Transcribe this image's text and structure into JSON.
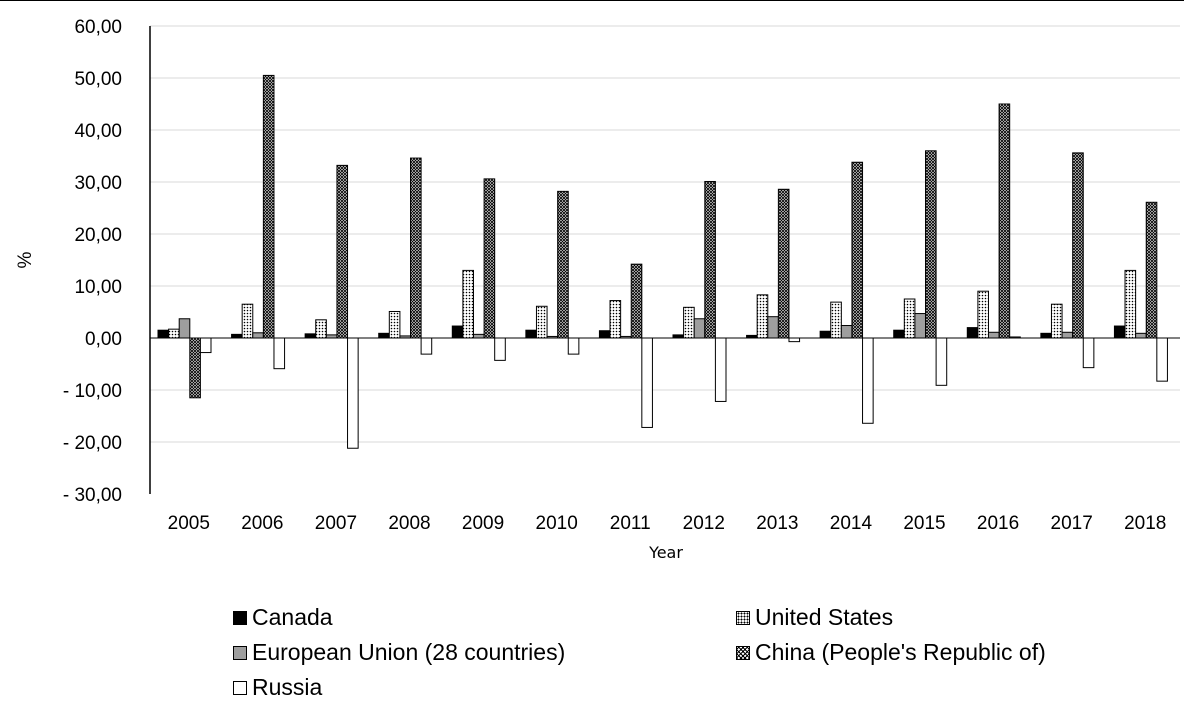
{
  "chart_data": {
    "type": "bar",
    "title": "",
    "xlabel": "Year",
    "ylabel": "%",
    "ylim": [
      -30,
      60
    ],
    "ytick_values": [
      60,
      50,
      40,
      30,
      20,
      10,
      0,
      -10,
      -20,
      -30
    ],
    "ytick_labels": [
      "60,00",
      "50,00",
      "40,00",
      "30,00",
      "20,00",
      "10,00",
      "0,00",
      "- 10,00",
      "- 20,00",
      "- 30,00"
    ],
    "categories": [
      "2005",
      "2006",
      "2007",
      "2008",
      "2009",
      "2010",
      "2011",
      "2012",
      "2013",
      "2014",
      "2015",
      "2016",
      "2017",
      "2018"
    ],
    "grid": true,
    "legend_position": "bottom",
    "series": [
      {
        "name": "Canada",
        "pattern": "solid-black",
        "color": "#000000",
        "values": [
          1.5,
          0.7,
          0.8,
          0.9,
          2.3,
          1.5,
          1.4,
          0.6,
          0.5,
          1.3,
          1.5,
          2.0,
          0.9,
          2.3
        ]
      },
      {
        "name": "United States",
        "pattern": "dots",
        "color": "#000000",
        "values": [
          1.7,
          6.5,
          3.5,
          5.1,
          13.0,
          6.1,
          7.2,
          5.9,
          8.3,
          6.9,
          7.5,
          9.0,
          6.5,
          13.0
        ]
      },
      {
        "name": "European Union (28 countries)",
        "pattern": "solid-gray",
        "color": "#9e9e9e",
        "values": [
          3.7,
          1.0,
          0.6,
          0.4,
          0.7,
          0.3,
          0.3,
          3.7,
          4.1,
          2.4,
          4.7,
          1.1,
          1.1,
          0.9
        ]
      },
      {
        "name": "China (People's Republic of)",
        "pattern": "crosshatch",
        "color": "#000000",
        "values": [
          -11.5,
          50.5,
          33.2,
          34.6,
          30.6,
          28.2,
          14.2,
          30.1,
          28.6,
          33.8,
          36.0,
          45.0,
          35.6,
          26.1
        ]
      },
      {
        "name": "Russia",
        "pattern": "hollow",
        "color": "#ffffff",
        "values": [
          -2.8,
          -5.9,
          -21.2,
          -3.1,
          -4.3,
          -3.1,
          -17.2,
          -12.2,
          -0.7,
          -16.4,
          -9.1,
          0.2,
          -5.7,
          -8.3
        ]
      }
    ]
  },
  "legend": {
    "items": [
      {
        "label": "Canada",
        "swatch": "canada"
      },
      {
        "label": "United States",
        "swatch": "us"
      },
      {
        "label": "European Union (28 countries)",
        "swatch": "eu"
      },
      {
        "label": "China (People's Republic of)",
        "swatch": "cn"
      },
      {
        "label": "Russia",
        "swatch": "ru"
      }
    ]
  }
}
